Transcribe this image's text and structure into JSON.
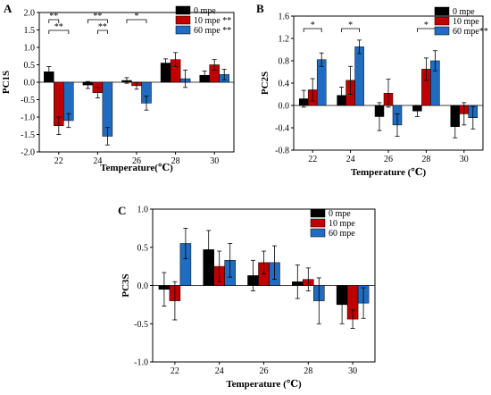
{
  "colors": {
    "0 mpe": "#000000",
    "10 mpe": "#c00000",
    "60 mpe": "#1f6cc0"
  },
  "chart_data": [
    {
      "type": "bar",
      "panel": "A",
      "xlabel": "Temperature(℃)",
      "ylabel": "PC1S",
      "categories": [
        "22",
        "24",
        "26",
        "28",
        "30"
      ],
      "ylim": [
        -2.0,
        2.0
      ],
      "yticks": [
        "-2.0",
        "-1.5",
        "-1.0",
        "-0.5",
        "0.0",
        "0.5",
        "1.0",
        "1.5",
        "2.0"
      ],
      "series": [
        {
          "name": "0 mpe",
          "values": [
            0.3,
            -0.08,
            0.05,
            0.55,
            0.2
          ],
          "errors": [
            0.15,
            0.1,
            0.08,
            0.12,
            0.12
          ]
        },
        {
          "name": "10 mpe **",
          "values": [
            -1.25,
            -0.3,
            -0.1,
            0.65,
            0.5
          ],
          "errors": [
            0.25,
            0.15,
            0.1,
            0.2,
            0.15
          ]
        },
        {
          "name": "60 mpe **",
          "values": [
            -1.1,
            -1.55,
            -0.6,
            0.1,
            0.22
          ],
          "errors": [
            0.2,
            0.25,
            0.2,
            0.25,
            0.15
          ]
        }
      ],
      "significance": [
        {
          "category": 0,
          "from": 0,
          "to": 1,
          "label": "**"
        },
        {
          "category": 0,
          "from": 0,
          "to": 2,
          "label": "**"
        },
        {
          "category": 1,
          "from": 0,
          "to": 2,
          "label": "**"
        },
        {
          "category": 1,
          "from": 1,
          "to": 2,
          "label": "**"
        },
        {
          "category": 2,
          "from": 0,
          "to": 2,
          "label": "*"
        }
      ],
      "legend_position": "top-right"
    },
    {
      "type": "bar",
      "panel": "B",
      "xlabel": "Temperature (℃)",
      "ylabel": "PC2S",
      "categories": [
        "22",
        "24",
        "26",
        "28",
        "30"
      ],
      "ylim": [
        -0.8,
        1.6
      ],
      "yticks": [
        "-0.8",
        "-0.4",
        "0.0",
        "0.4",
        "0.8",
        "1.2",
        "1.6"
      ],
      "series": [
        {
          "name": "0 mpe",
          "values": [
            0.12,
            0.18,
            -0.2,
            -0.1,
            -0.38
          ],
          "errors": [
            0.15,
            0.15,
            0.25,
            0.1,
            0.2
          ]
        },
        {
          "name": "10 mpe",
          "values": [
            0.28,
            0.45,
            0.22,
            0.65,
            -0.15
          ],
          "errors": [
            0.2,
            0.25,
            0.25,
            0.2,
            0.2
          ]
        },
        {
          "name": "60 mpe**",
          "values": [
            0.82,
            1.05,
            -0.35,
            0.8,
            -0.22
          ],
          "errors": [
            0.12,
            0.12,
            0.2,
            0.18,
            0.2
          ]
        }
      ],
      "significance": [
        {
          "category": 0,
          "from": 0,
          "to": 2,
          "label": "*"
        },
        {
          "category": 1,
          "from": 0,
          "to": 2,
          "label": "*"
        },
        {
          "category": 3,
          "from": 0,
          "to": 2,
          "label": "*"
        }
      ],
      "legend_position": "top-right"
    },
    {
      "type": "bar",
      "panel": "C",
      "xlabel": "Temperature (℃)",
      "ylabel": "PC3S",
      "categories": [
        "22",
        "24",
        "26",
        "28",
        "30"
      ],
      "ylim": [
        -1.0,
        1.0
      ],
      "yticks": [
        "-1.0",
        "-0.5",
        "0.0",
        "0.5",
        "1.0"
      ],
      "series": [
        {
          "name": "0 mpe",
          "values": [
            -0.05,
            0.47,
            0.13,
            0.05,
            -0.25
          ],
          "errors": [
            0.22,
            0.25,
            0.2,
            0.22,
            0.25
          ]
        },
        {
          "name": "10 mpe",
          "values": [
            -0.2,
            0.25,
            0.3,
            0.08,
            -0.44
          ],
          "errors": [
            0.25,
            0.2,
            0.15,
            0.15,
            0.12
          ]
        },
        {
          "name": "60 mpe",
          "values": [
            0.55,
            0.33,
            0.3,
            -0.2,
            -0.23
          ],
          "errors": [
            0.2,
            0.22,
            0.22,
            0.3,
            0.2
          ]
        }
      ],
      "significance": [],
      "legend_position": "top-right"
    }
  ]
}
